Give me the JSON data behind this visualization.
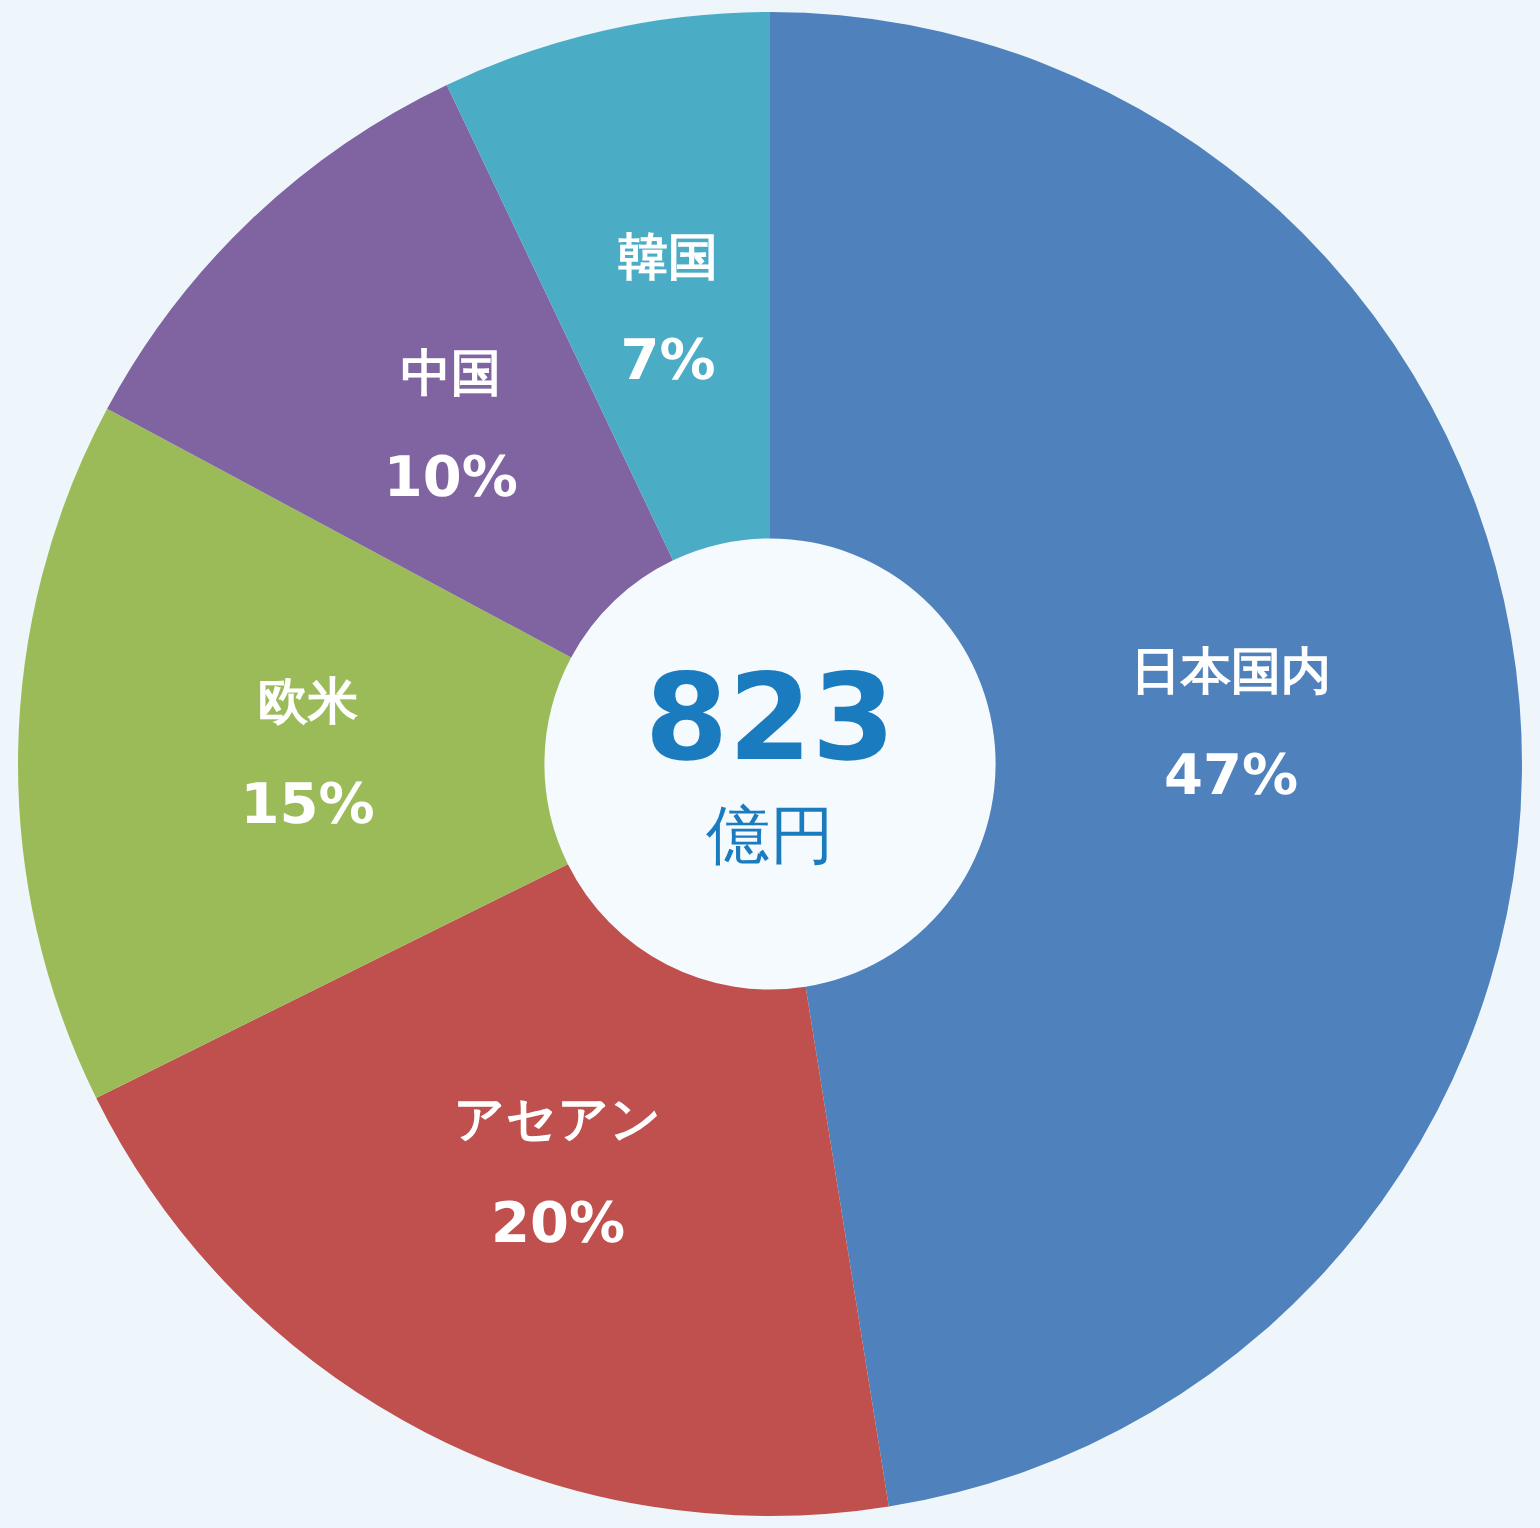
{
  "chart_data": {
    "type": "donut",
    "categories": [
      "日本国内",
      "アセアン",
      "欧米",
      "中国",
      "韓国"
    ],
    "values": [
      47,
      20,
      15,
      10,
      7
    ],
    "value_labels": [
      "47%",
      "20%",
      "15%",
      "10%",
      "7%"
    ],
    "colors": [
      "#4f81bd",
      "#c0504d",
      "#9bbb59",
      "#8064a2",
      "#4bacc6"
    ],
    "annotations": [
      "823",
      "億円"
    ]
  }
}
